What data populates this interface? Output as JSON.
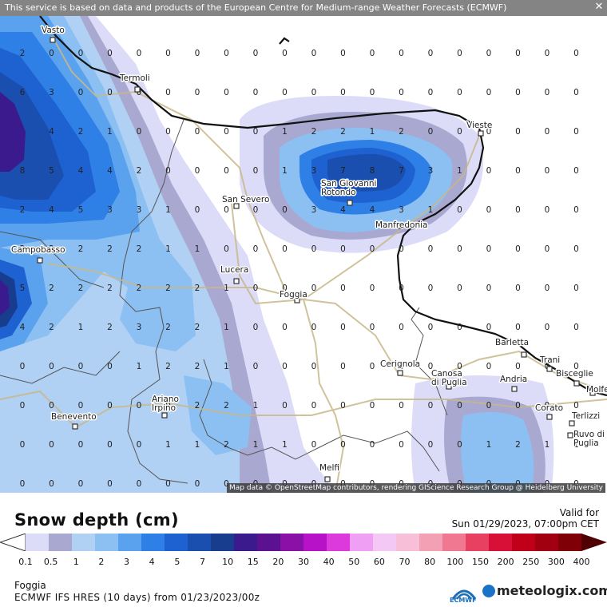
{
  "banner": {
    "text": "This service is based on data and products of the European Centre for Medium-range Weather Forecasts (ECMWF)",
    "close_icon": "close-icon"
  },
  "attribution": "Map data © OpenStreetMap contributors, rendering GIScience Research Group @ Heidelberg University",
  "legend": {
    "title": "Snow depth (cm)",
    "valid_label": "Valid for",
    "valid_time": "Sun 01/29/2023, 07:00pm CET",
    "ticks": [
      "0.1",
      "0.5",
      "1",
      "2",
      "3",
      "4",
      "5",
      "7",
      "10",
      "15",
      "20",
      "30",
      "40",
      "50",
      "60",
      "70",
      "80",
      "100",
      "150",
      "200",
      "250",
      "300",
      "400"
    ],
    "colors": [
      "#dcdcf8",
      "#a8a8d0",
      "#b0d0f4",
      "#8cc0f2",
      "#5aa2ee",
      "#2f80e6",
      "#1d62d0",
      "#1a4fb0",
      "#183d8e",
      "#3a1a8c",
      "#5c1290",
      "#8a10a8",
      "#b712c8",
      "#dc3adc",
      "#f0a0f4",
      "#f4c8f4",
      "#f8c0d8",
      "#f4a0b4",
      "#f07890",
      "#e84060",
      "#d81038",
      "#c00018",
      "#a00010",
      "#800008",
      "#500004"
    ]
  },
  "footer": {
    "location": "Foggia",
    "model_info": "ECMWF IFS HRES (10 days) from 01/23/2023/00z",
    "ecmwf_label": "ECMWF",
    "brand": "meteologix.com"
  },
  "cities": [
    {
      "name": "Vasto"
    },
    {
      "name": "Termoli"
    },
    {
      "name": "Vieste"
    },
    {
      "name": "San Severo"
    },
    {
      "name": "San Giovanni\nRotondo"
    },
    {
      "name": "Manfredonia"
    },
    {
      "name": "Campobasso"
    },
    {
      "name": "Lucera"
    },
    {
      "name": "Foggia"
    },
    {
      "name": "Barletta"
    },
    {
      "name": "Trani"
    },
    {
      "name": "Bisceglie"
    },
    {
      "name": "Molfe"
    },
    {
      "name": "Cerignola"
    },
    {
      "name": "Canosa\ndi Puglia"
    },
    {
      "name": "Andria"
    },
    {
      "name": "Ariano\nIrpino"
    },
    {
      "name": "Benevento"
    },
    {
      "name": "Corato"
    },
    {
      "name": "Terlizzi"
    },
    {
      "name": "Ruvo di\nPuglia"
    },
    {
      "name": "Melfi"
    }
  ],
  "grid_values": [
    [
      "2",
      "0",
      "0",
      "0",
      "0",
      "0",
      "0",
      "0",
      "0",
      "0",
      "0",
      "0",
      "0",
      "0",
      "0",
      "0",
      "0",
      "0",
      "0",
      "0"
    ],
    [
      "6",
      "3",
      "0",
      "0",
      "0",
      "0",
      "0",
      "0",
      "0",
      "0",
      "0",
      "0",
      "0",
      "0",
      "0",
      "0",
      "0",
      "0",
      "0",
      "0"
    ],
    [
      "",
      "4",
      "2",
      "1",
      "0",
      "0",
      "0",
      "0",
      "0",
      "1",
      "2",
      "2",
      "1",
      "2",
      "0",
      "0",
      "0",
      "0",
      "0",
      "0"
    ],
    [
      "8",
      "5",
      "4",
      "4",
      "2",
      "0",
      "0",
      "0",
      "0",
      "1",
      "3",
      "7",
      "8",
      "7",
      "3",
      "1",
      "0",
      "0",
      "0",
      "0"
    ],
    [
      "2",
      "4",
      "5",
      "3",
      "3",
      "1",
      "0",
      "0",
      "0",
      "0",
      "3",
      "4",
      "4",
      "3",
      "1",
      "0",
      "0",
      "0",
      "0",
      "0"
    ],
    [
      "2",
      "2",
      "2",
      "2",
      "2",
      "1",
      "1",
      "0",
      "0",
      "0",
      "0",
      "0",
      "0",
      "0",
      "0",
      "0",
      "0",
      "0",
      "0",
      "0"
    ],
    [
      "5",
      "2",
      "2",
      "2",
      "2",
      "2",
      "2",
      "1",
      "0",
      "0",
      "0",
      "0",
      "0",
      "0",
      "0",
      "0",
      "0",
      "0",
      "0",
      "0"
    ],
    [
      "4",
      "2",
      "1",
      "2",
      "3",
      "2",
      "2",
      "1",
      "0",
      "0",
      "0",
      "0",
      "0",
      "0",
      "0",
      "0",
      "0",
      "0",
      "0",
      "0"
    ],
    [
      "0",
      "0",
      "0",
      "0",
      "1",
      "2",
      "2",
      "1",
      "0",
      "0",
      "0",
      "0",
      "0",
      "0",
      "0",
      "0",
      "0",
      "0",
      "0",
      "0"
    ],
    [
      "0",
      "0",
      "0",
      "0",
      "0",
      "0",
      "2",
      "2",
      "1",
      "0",
      "0",
      "0",
      "0",
      "0",
      "0",
      "0",
      "0",
      "0",
      "0",
      "0"
    ],
    [
      "0",
      "0",
      "0",
      "0",
      "0",
      "1",
      "1",
      "2",
      "1",
      "1",
      "0",
      "0",
      "0",
      "0",
      "0",
      "0",
      "1",
      "2",
      "1",
      "1"
    ],
    [
      "0",
      "0",
      "0",
      "0",
      "0",
      "0",
      "0",
      "0",
      "0",
      "0",
      "0",
      "0",
      "0",
      "0",
      "0",
      "0",
      "0",
      "0",
      "0",
      "0"
    ]
  ]
}
